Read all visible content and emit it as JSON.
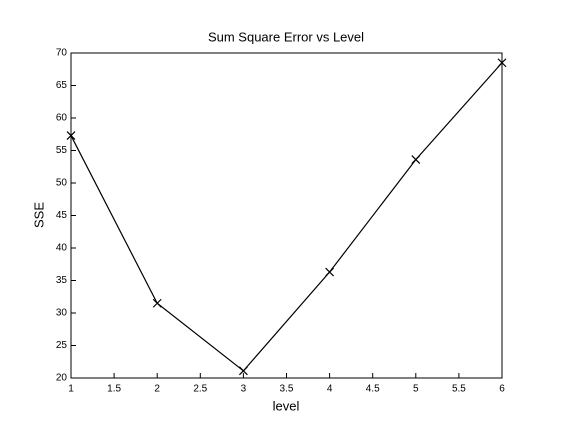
{
  "chart_data": {
    "type": "line",
    "title": "Sum Square Error vs Level",
    "x_label": "level",
    "y_label": "SSE",
    "x": [
      1,
      2,
      3,
      4,
      5,
      6
    ],
    "series": [
      {
        "color": "#000000",
        "marker": "x",
        "values": [
          57.3,
          31.5,
          21.1,
          36.3,
          53.6,
          68.5
        ]
      }
    ],
    "xlim": [
      1,
      6
    ],
    "xticks": [
      1,
      1.5,
      2,
      2.5,
      3,
      3.5,
      4,
      4.5,
      5,
      5.5,
      6
    ],
    "ylim": [
      20,
      70
    ],
    "yticks": [
      20,
      25,
      30,
      35,
      40,
      45,
      50,
      55,
      60,
      65,
      70
    ],
    "grid": false
  }
}
